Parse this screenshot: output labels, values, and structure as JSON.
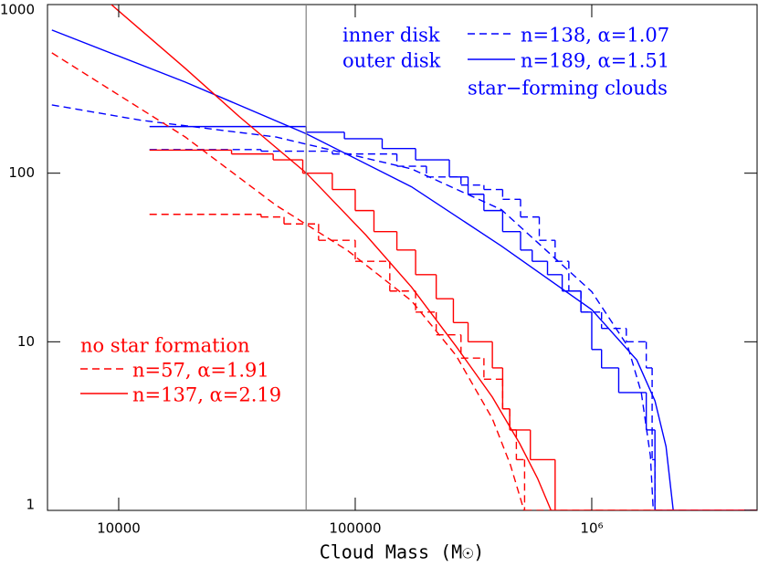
{
  "chart_data": {
    "type": "line",
    "x_label": "Cloud Mass (M☉)",
    "xlog": true,
    "ylog": true,
    "xlim": [
      5000,
      5000000
    ],
    "ylim": [
      1,
      1000
    ],
    "xticks": [
      10000,
      100000,
      {
        "value": 1000000,
        "label": "10⁶"
      }
    ],
    "yticks": [
      1,
      10,
      100,
      1000
    ],
    "reference_x": 62000,
    "reference_color": "#808080",
    "annotations": [
      "star−forming clouds",
      "no star formation"
    ],
    "series": [
      {
        "label": "inner disk",
        "name": "n=138, α=1.07",
        "color": "#0000ff",
        "dashed": true,
        "x": [
          5220,
          12400,
          46100,
          173000,
          415000,
          1000000,
          1420000,
          1620000,
          1770000,
          1820000
        ],
        "values": [
          254,
          206,
          164,
          106,
          60.8,
          19.8,
          9.4,
          5.0,
          2.1,
          1
        ],
        "steps": {
          "x": [
            13500,
            40000,
            80000,
            150000,
            200000,
            280000,
            350000,
            420000,
            500000,
            600000,
            700000,
            800000,
            900000,
            1100000,
            1400000,
            1700000,
            1800000,
            1850000
          ],
          "values": [
            138,
            135,
            130,
            110,
            95,
            85,
            80,
            70,
            55,
            40,
            30,
            20,
            15,
            12,
            10,
            7,
            2,
            1
          ]
        }
      },
      {
        "label": "outer disk",
        "name": "n=189, α=1.51",
        "color": "#0000ff",
        "dashed": false,
        "x": [
          5220,
          19100,
          62200,
          173000,
          415000,
          1000000,
          1550000,
          1850000,
          2060000,
          2210000
        ],
        "values": [
          706,
          347,
          171,
          83,
          37,
          15.5,
          7.8,
          4.46,
          2.39,
          1
        ],
        "steps": {
          "x": [
            13500,
            62000,
            90000,
            130000,
            180000,
            250000,
            300000,
            350000,
            420000,
            500000,
            560000,
            650000,
            750000,
            900000,
            1000000,
            1100000,
            1300000,
            1700000,
            1850000
          ],
          "values": [
            189,
            175,
            160,
            140,
            120,
            95,
            75,
            60,
            45,
            35,
            30,
            25,
            20,
            15,
            9,
            7,
            5,
            3,
            1
          ]
        }
      },
      {
        "name": "n=57, α=1.91",
        "color": "#ff0000",
        "dashed": true,
        "x": [
          5220,
          19100,
          46100,
          93100,
          173000,
          267000,
          380000,
          453000,
          517000
        ],
        "values": [
          517,
          164,
          64.7,
          34.7,
          17.5,
          8.3,
          3.5,
          1.86,
          1
        ],
        "steps": {
          "x": [
            13500,
            40000,
            50000,
            70000,
            100000,
            140000,
            180000,
            220000,
            280000,
            350000,
            420000,
            450000,
            480000,
            520000
          ],
          "values": [
            57,
            55,
            50,
            40,
            30,
            20,
            15,
            11,
            8,
            6,
            4,
            3,
            2,
            1
          ]
        }
      },
      {
        "name": "n=137, α=2.19",
        "color": "#ff0000",
        "dashed": false,
        "x": [
          9310,
          19100,
          32400,
          62200,
          111000,
          173000,
          267000,
          380000,
          495000,
          590000,
          673000
        ],
        "values": [
          1000,
          419,
          216,
          100,
          42.9,
          21.1,
          9.4,
          4.7,
          2.5,
          1.55,
          1
        ],
        "steps": {
          "x": [
            13500,
            30000,
            45000,
            60000,
            80000,
            100000,
            120000,
            150000,
            180000,
            220000,
            260000,
            300000,
            380000,
            420000,
            450000,
            550000,
            700000
          ],
          "values": [
            137,
            130,
            120,
            100,
            80,
            60,
            45,
            35,
            25,
            18,
            13,
            10,
            7,
            4,
            3,
            2,
            1
          ]
        }
      }
    ]
  }
}
